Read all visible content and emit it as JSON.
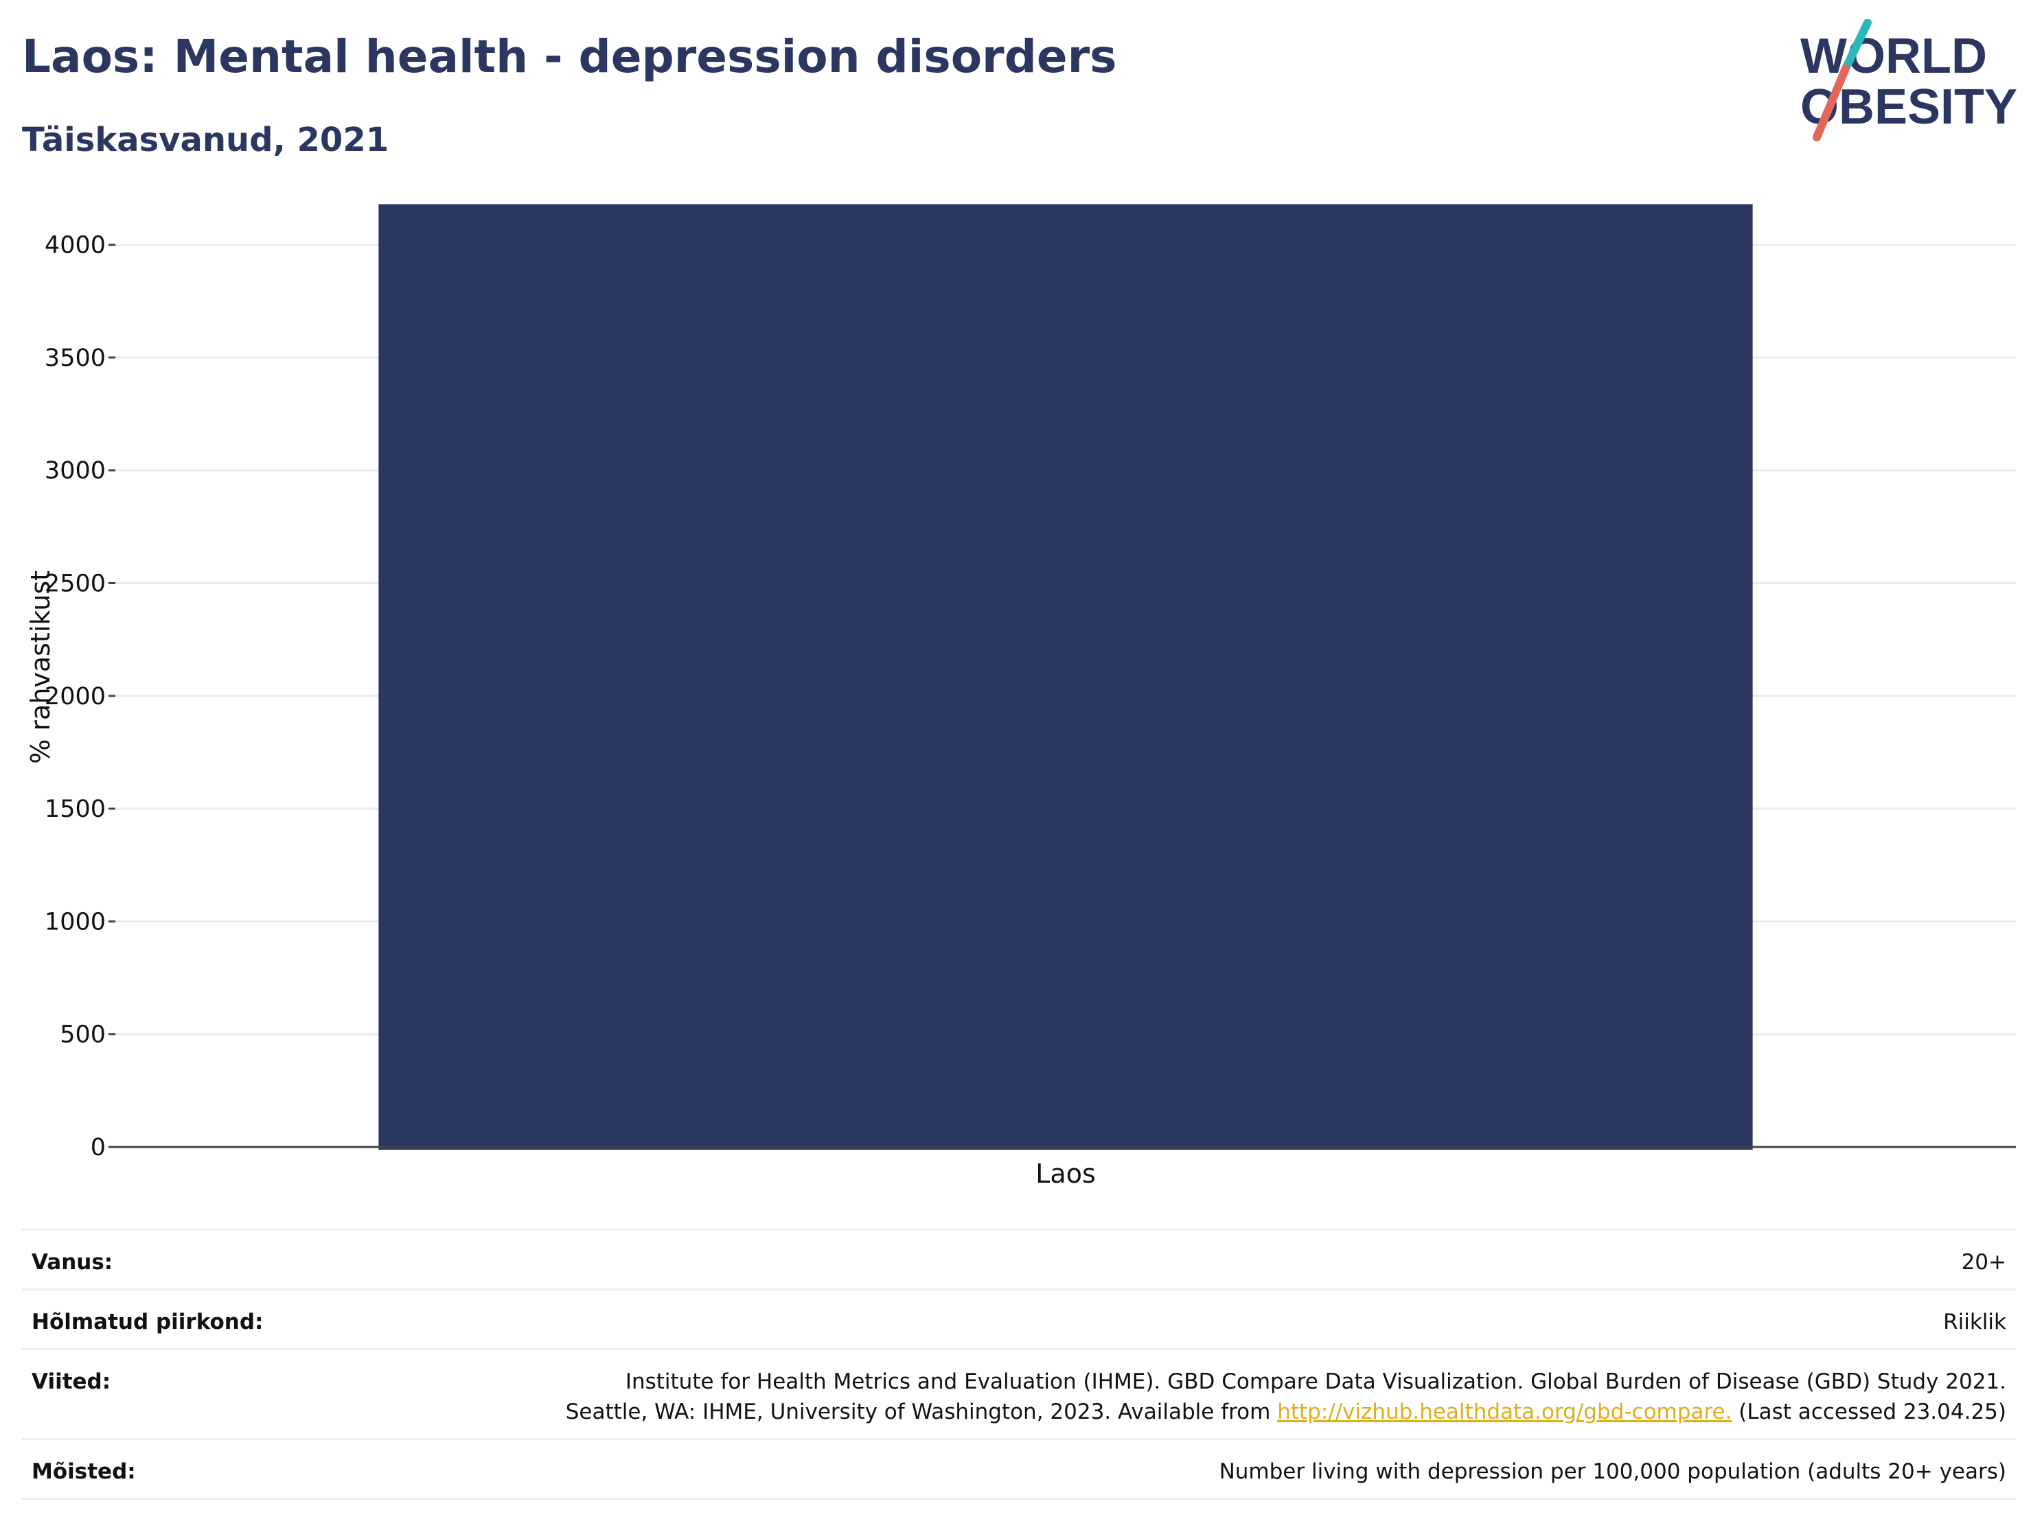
{
  "header": {
    "title": "Laos: Mental health - depression disorders",
    "subtitle": "Täiskasvanud, 2021"
  },
  "logo": {
    "line1": "WORLD",
    "line2": "OBESITY",
    "colors": {
      "text": "#2b3661",
      "slash_top": "#2ab7b8",
      "slash_bottom": "#e2685b"
    }
  },
  "chart_data": {
    "type": "bar",
    "categories": [
      "Laos"
    ],
    "values": [
      4180
    ],
    "ylabel": "% rahvastikust",
    "xlabel": "",
    "ylim": [
      0,
      4300
    ],
    "yticks": [
      0,
      500,
      1000,
      1500,
      2000,
      2500,
      3000,
      3500,
      4000
    ],
    "grid": true,
    "legend": "none",
    "bar_color": "#2b3661"
  },
  "meta": {
    "rows": [
      {
        "label": "Vanus:",
        "value": "20+"
      },
      {
        "label": "Hõlmatud piirkond:",
        "value": "Riiklik"
      },
      {
        "label": "Viited:",
        "line1": "Institute for Health Metrics and Evaluation (IHME). GBD Compare Data Visualization. Global Burden of Disease (GBD) Study 2021.",
        "line2_before": "Seattle, WA: IHME, University of Washington, 2023. Available from ",
        "link": "http://vizhub.healthdata.org/gbd-compare.",
        "line2_after": " (Last accessed 23.04.25)"
      },
      {
        "label": "Mõisted:",
        "value": "Number living with depression per 100,000 population (adults 20+ years)"
      }
    ]
  }
}
